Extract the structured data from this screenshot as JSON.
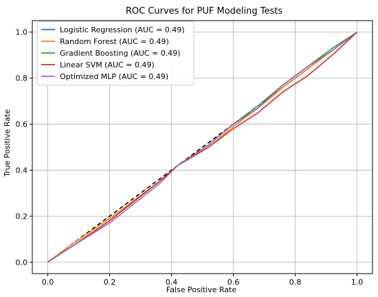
{
  "chart_data": {
    "type": "line",
    "title": "ROC Curves for PUF Modeling Tests",
    "xlabel": "False Positive Rate",
    "ylabel": "True Positive Rate",
    "xlim": [
      -0.05,
      1.05
    ],
    "ylim": [
      -0.05,
      1.05
    ],
    "x_ticks": [
      0.0,
      0.2,
      0.4,
      0.6,
      0.8,
      1.0
    ],
    "y_ticks": [
      0.0,
      0.2,
      0.4,
      0.6,
      0.8,
      1.0
    ],
    "x_tick_labels": [
      "0.0",
      "0.2",
      "0.4",
      "0.6",
      "0.8",
      "1.0"
    ],
    "y_tick_labels": [
      "0.0",
      "0.2",
      "0.4",
      "0.6",
      "0.8",
      "1.0"
    ],
    "grid": true,
    "legend_position": "upper-left",
    "series": [
      {
        "name": "Logistic Regression (AUC = 0.49)",
        "color": "#1f77b4",
        "x": [
          0.0,
          0.08,
          0.2,
          0.36,
          0.42,
          0.52,
          0.6,
          0.68,
          0.76,
          0.84,
          0.92,
          1.0
        ],
        "y": [
          0.0,
          0.07,
          0.18,
          0.35,
          0.42,
          0.51,
          0.6,
          0.67,
          0.76,
          0.84,
          0.92,
          1.0
        ]
      },
      {
        "name": "Random Forest (AUC = 0.49)",
        "color": "#ff7f0e",
        "x": [
          0.0,
          0.08,
          0.2,
          0.36,
          0.42,
          0.52,
          0.6,
          0.68,
          0.76,
          0.84,
          0.92,
          1.0
        ],
        "y": [
          0.0,
          0.08,
          0.19,
          0.35,
          0.42,
          0.5,
          0.59,
          0.67,
          0.76,
          0.84,
          0.92,
          1.0
        ]
      },
      {
        "name": "Gradient Boosting (AUC = 0.49)",
        "color": "#2ca02c",
        "x": [
          0.0,
          0.08,
          0.2,
          0.36,
          0.42,
          0.52,
          0.6,
          0.68,
          0.76,
          0.84,
          0.92,
          1.0
        ],
        "y": [
          0.0,
          0.07,
          0.18,
          0.35,
          0.42,
          0.51,
          0.6,
          0.68,
          0.77,
          0.85,
          0.93,
          1.0
        ]
      },
      {
        "name": "Linear SVM (AUC = 0.49)",
        "color": "#d62728",
        "x": [
          0.0,
          0.08,
          0.2,
          0.36,
          0.42,
          0.52,
          0.6,
          0.68,
          0.76,
          0.84,
          0.92,
          1.0
        ],
        "y": [
          0.0,
          0.07,
          0.18,
          0.35,
          0.42,
          0.5,
          0.58,
          0.65,
          0.74,
          0.81,
          0.9,
          1.0
        ]
      },
      {
        "name": "Optimized MLP (AUC = 0.49)",
        "color": "#9467bd",
        "x": [
          0.0,
          0.08,
          0.2,
          0.36,
          0.42,
          0.52,
          0.6,
          0.68,
          0.76,
          0.84,
          0.92,
          1.0
        ],
        "y": [
          0.0,
          0.07,
          0.17,
          0.34,
          0.42,
          0.51,
          0.6,
          0.67,
          0.77,
          0.85,
          0.92,
          1.0
        ]
      }
    ],
    "reference_line": {
      "x": [
        0.0,
        1.0
      ],
      "y": [
        0.0,
        1.0
      ],
      "color": "#000000",
      "style": "dashed"
    }
  }
}
